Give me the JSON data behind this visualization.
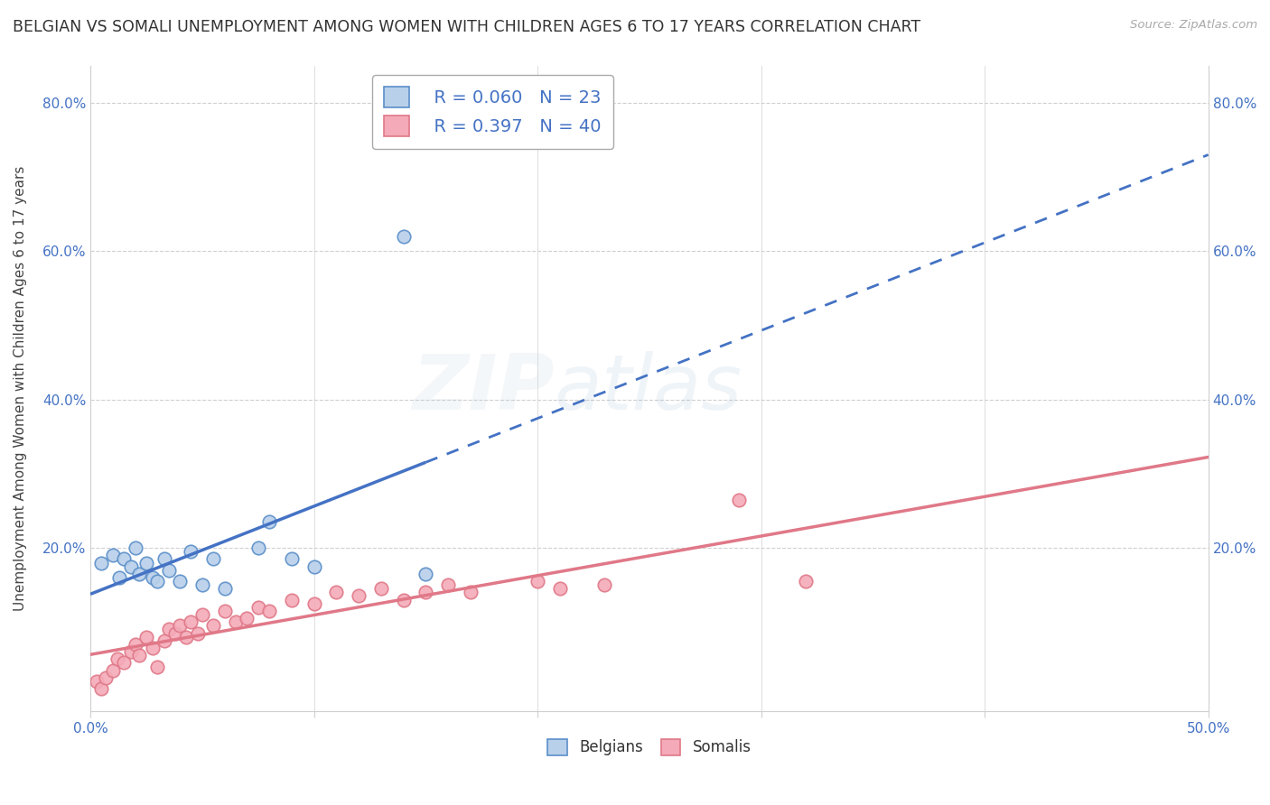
{
  "title": "BELGIAN VS SOMALI UNEMPLOYMENT AMONG WOMEN WITH CHILDREN AGES 6 TO 17 YEARS CORRELATION CHART",
  "source": "Source: ZipAtlas.com",
  "ylabel": "Unemployment Among Women with Children Ages 6 to 17 years",
  "xlim": [
    0.0,
    0.5
  ],
  "ylim": [
    -0.02,
    0.85
  ],
  "xticks": [
    0.0,
    0.1,
    0.2,
    0.3,
    0.4,
    0.5
  ],
  "yticks": [
    0.0,
    0.2,
    0.4,
    0.6,
    0.8
  ],
  "legend_r1": "R = 0.060",
  "legend_n1": "N = 23",
  "legend_r2": "R = 0.397",
  "legend_n2": "N = 40",
  "watermark_zip": "ZIP",
  "watermark_atlas": "atlas",
  "belgian_color": "#b8d0ea",
  "somali_color": "#f4aab8",
  "belgian_edge_color": "#5b8fc9",
  "somali_edge_color": "#e07888",
  "belgian_line_color": "#4472c4",
  "somali_line_color": "#e07888",
  "background_color": "#ffffff",
  "grid_color": "#d0d0d0",
  "tick_color": "#4472c4",
  "title_color": "#333333",
  "source_color": "#aaaaaa",
  "belgian_x": [
    0.005,
    0.01,
    0.013,
    0.015,
    0.018,
    0.02,
    0.022,
    0.025,
    0.028,
    0.03,
    0.033,
    0.035,
    0.04,
    0.045,
    0.05,
    0.055,
    0.06,
    0.075,
    0.08,
    0.09,
    0.1,
    0.14,
    0.15
  ],
  "belgian_y": [
    0.18,
    0.19,
    0.16,
    0.185,
    0.175,
    0.2,
    0.165,
    0.18,
    0.16,
    0.155,
    0.185,
    0.17,
    0.155,
    0.195,
    0.15,
    0.185,
    0.145,
    0.2,
    0.235,
    0.185,
    0.175,
    0.62,
    0.165
  ],
  "somali_x": [
    0.003,
    0.005,
    0.007,
    0.01,
    0.012,
    0.015,
    0.018,
    0.02,
    0.022,
    0.025,
    0.028,
    0.03,
    0.033,
    0.035,
    0.038,
    0.04,
    0.043,
    0.045,
    0.048,
    0.05,
    0.055,
    0.06,
    0.065,
    0.07,
    0.075,
    0.08,
    0.09,
    0.1,
    0.11,
    0.12,
    0.13,
    0.14,
    0.15,
    0.16,
    0.17,
    0.2,
    0.21,
    0.23,
    0.29,
    0.32
  ],
  "somali_y": [
    0.02,
    0.01,
    0.025,
    0.035,
    0.05,
    0.045,
    0.06,
    0.07,
    0.055,
    0.08,
    0.065,
    0.04,
    0.075,
    0.09,
    0.085,
    0.095,
    0.08,
    0.1,
    0.085,
    0.11,
    0.095,
    0.115,
    0.1,
    0.105,
    0.12,
    0.115,
    0.13,
    0.125,
    0.14,
    0.135,
    0.145,
    0.13,
    0.14,
    0.15,
    0.14,
    0.155,
    0.145,
    0.15,
    0.265,
    0.155
  ],
  "belgian_solid_xlim": [
    0.0,
    0.15
  ],
  "title_fontsize": 12.5,
  "axis_label_fontsize": 11,
  "tick_fontsize": 11,
  "legend_fontsize": 14,
  "watermark_fontsize_zip": 62,
  "watermark_fontsize_atlas": 62,
  "watermark_alpha": 0.13,
  "marker_size": 110,
  "marker_linewidth": 1.2
}
